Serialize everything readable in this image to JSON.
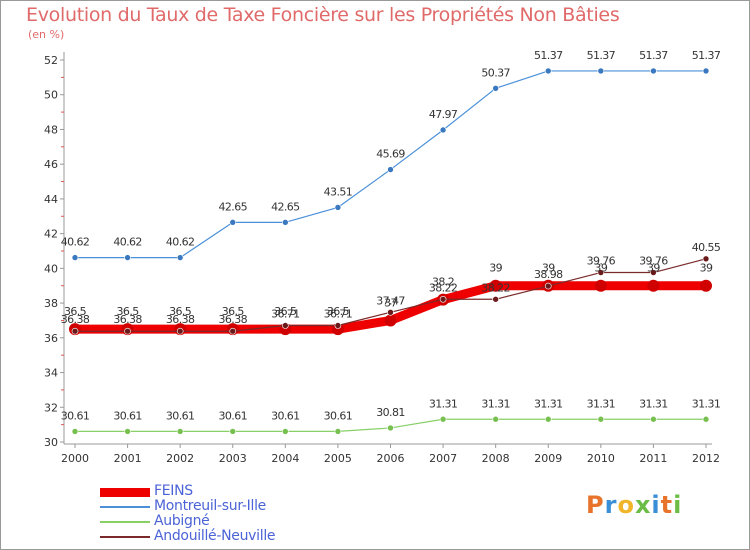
{
  "chart_data": {
    "type": "line",
    "title": "Evolution du Taux de Taxe Foncière sur les Propriétés Non Bâties",
    "ylabel": "(en %)",
    "xlabel": "",
    "ylim": [
      30,
      52
    ],
    "yticks": [
      30,
      32,
      34,
      36,
      38,
      40,
      42,
      44,
      46,
      48,
      50,
      52
    ],
    "categories": [
      "2000",
      "2001",
      "2002",
      "2003",
      "2004",
      "2005",
      "2006",
      "2007",
      "2008",
      "2009",
      "2010",
      "2011",
      "2012"
    ],
    "grid": false,
    "legend_position": "bottom-left",
    "series": [
      {
        "name": "FEINS",
        "color": "#ee0000",
        "values": [
          36.5,
          36.5,
          36.5,
          36.5,
          36.5,
          36.5,
          37,
          38.2,
          39,
          39,
          39,
          39,
          39
        ],
        "labels": [
          "36.5",
          "36.5",
          "36.5",
          "36.5",
          "36.5",
          "36.5",
          "37",
          "38.2",
          "39",
          "39",
          "39",
          "39",
          "39"
        ]
      },
      {
        "name": "Montreuil-sur-Ille",
        "color": "#4a90d9",
        "values": [
          40.62,
          40.62,
          40.62,
          42.65,
          42.65,
          43.51,
          45.69,
          47.97,
          50.37,
          51.37,
          51.37,
          51.37,
          51.37
        ],
        "labels": [
          "40.62",
          "40.62",
          "40.62",
          "42.65",
          "42.65",
          "43.51",
          "45.69",
          "47.97",
          "50.37",
          "51.37",
          "51.37",
          "51.37",
          "51.37"
        ]
      },
      {
        "name": "Aubigné",
        "color": "#88d066",
        "values": [
          30.61,
          30.61,
          30.61,
          30.61,
          30.61,
          30.61,
          30.81,
          31.31,
          31.31,
          31.31,
          31.31,
          31.31,
          31.31
        ],
        "labels": [
          "30.61",
          "30.61",
          "30.61",
          "30.61",
          "30.61",
          "30.61",
          "30.81",
          "31.31",
          "31.31",
          "31.31",
          "31.31",
          "31.31",
          "31.31"
        ]
      },
      {
        "name": "Andouillé-Neuville",
        "color": "#7a2a2a",
        "values": [
          36.38,
          36.38,
          36.38,
          36.38,
          36.71,
          36.71,
          37.47,
          38.22,
          38.22,
          38.98,
          39.76,
          39.76,
          40.55
        ],
        "labels": [
          "36.38",
          "36.38",
          "36.38",
          "36.38",
          "36.71",
          "36.71",
          "37.47",
          "38.22",
          "38.22",
          "38.98",
          "39.76",
          "39.76",
          "40.55"
        ]
      }
    ]
  },
  "logo": {
    "letters": [
      "P",
      "r",
      "o",
      "x",
      "i",
      "t",
      "i"
    ],
    "colors": [
      "#e8742c",
      "#3b8fd6",
      "#f0b528",
      "#6cbd45",
      "#3b8fd6",
      "#e8742c",
      "#6cbd45"
    ]
  }
}
